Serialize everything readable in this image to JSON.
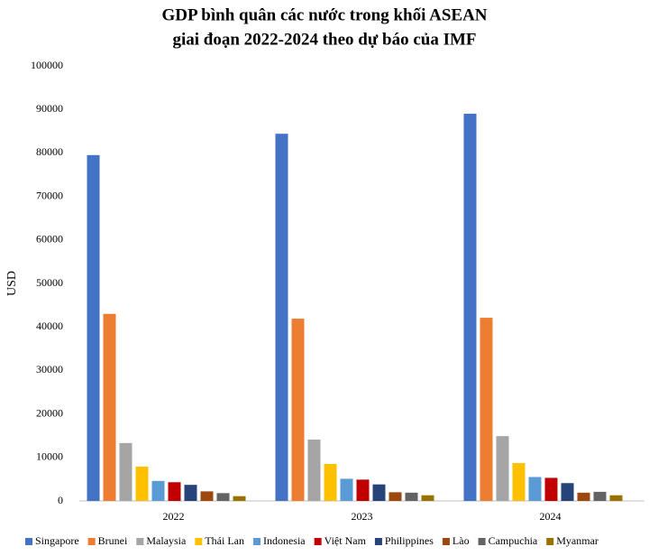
{
  "chart_data": {
    "type": "bar",
    "title": "GDP bình quân các nước trong khối ASEAN",
    "subtitle": "giai đoạn 2022-2024 theo dự báo của IMF",
    "y_label": "USD",
    "categories": [
      "2022",
      "2023",
      "2024"
    ],
    "series": [
      {
        "name": "Singapore",
        "color": "#4472c4",
        "values": [
          79500,
          84400,
          89000
        ]
      },
      {
        "name": "Brunei",
        "color": "#ed7d31",
        "values": [
          43000,
          41900,
          42100
        ]
      },
      {
        "name": "Malaysia",
        "color": "#a5a5a5",
        "values": [
          13300,
          14100,
          14900
        ]
      },
      {
        "name": "Thái Lan",
        "color": "#ffc000",
        "values": [
          7900,
          8500,
          8700
        ]
      },
      {
        "name": "Indonesia",
        "color": "#5b9bd5",
        "values": [
          4600,
          5100,
          5500
        ]
      },
      {
        "name": "Việt Nam",
        "color": "#c00000",
        "values": [
          4300,
          4900,
          5300
        ]
      },
      {
        "name": "Philippines",
        "color": "#264478",
        "values": [
          3700,
          3800,
          4100
        ]
      },
      {
        "name": "Lào",
        "color": "#9e480e",
        "values": [
          2200,
          2000,
          1900
        ]
      },
      {
        "name": "Campuchia",
        "color": "#636363",
        "values": [
          1800,
          1900,
          2100
        ]
      },
      {
        "name": "Myanmar",
        "color": "#997300",
        "values": [
          1100,
          1300,
          1300
        ]
      }
    ],
    "ylim": [
      0,
      100000
    ],
    "yticks": [
      0,
      10000,
      20000,
      30000,
      40000,
      50000,
      60000,
      70000,
      80000,
      90000,
      100000
    ],
    "grid": false,
    "legend": "bottom"
  }
}
